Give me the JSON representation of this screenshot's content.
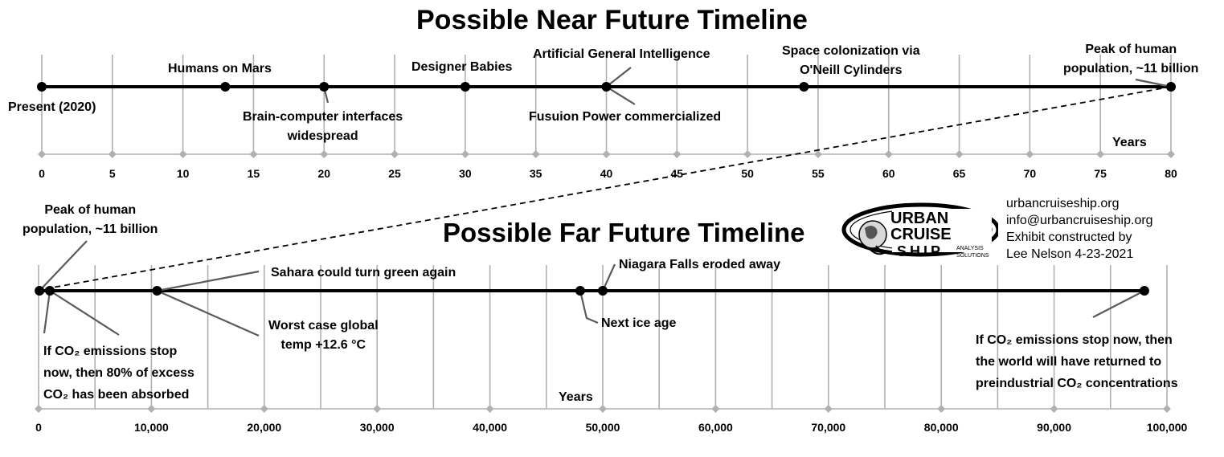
{
  "near": {
    "title": "Possible Near Future Timeline",
    "unit_label": "Years",
    "axis": {
      "min": 0,
      "max": 80,
      "ticks": [
        0,
        5,
        10,
        15,
        20,
        25,
        30,
        35,
        40,
        45,
        50,
        55,
        60,
        65,
        70,
        75,
        80
      ]
    },
    "events": [
      {
        "year": 0,
        "lines": [
          "Present (2020)"
        ]
      },
      {
        "year": 13,
        "lines": [
          "Humans on Mars"
        ]
      },
      {
        "year": 20,
        "lines": [
          "Brain-computer interfaces",
          "widespread"
        ]
      },
      {
        "year": 30,
        "lines": [
          "Designer Babies"
        ]
      },
      {
        "year": 40,
        "lines": [
          "Artificial General Intelligence"
        ]
      },
      {
        "year": 40,
        "lines": [
          "Fusuion Power commercialized"
        ]
      },
      {
        "year": 54,
        "lines": [
          "Space colonization via",
          "O'Neill Cylinders"
        ]
      },
      {
        "year": 80,
        "lines": [
          "Peak of human",
          "population, ~11 billion"
        ]
      }
    ]
  },
  "far": {
    "title": "Possible Far Future Timeline",
    "unit_label": "Years",
    "axis": {
      "min": 0,
      "max": 100000,
      "ticks": [
        "0",
        "10,000",
        "20,000",
        "30,000",
        "40,000",
        "50,000",
        "60,000",
        "70,000",
        "80,000",
        "90,000",
        "100,000"
      ]
    },
    "events": [
      {
        "year": 80,
        "lines": [
          "Peak of human",
          "population, ~11 billion"
        ]
      },
      {
        "year": 1000,
        "lines": [
          "If CO₂ emissions stop",
          "now, then 80% of excess",
          "CO₂ has been absorbed"
        ]
      },
      {
        "year": 10500,
        "lines": [
          "Sahara could turn green again"
        ]
      },
      {
        "year": 10500,
        "lines": [
          "Worst case global",
          "temp +12.6 °C"
        ]
      },
      {
        "year": 48000,
        "lines": [
          "Next ice age"
        ]
      },
      {
        "year": 50000,
        "lines": [
          "Niagara Falls eroded away"
        ]
      },
      {
        "year": 98000,
        "lines": [
          "If CO₂ emissions stop now, then",
          "the world will have returned to",
          "preindustrial CO₂ concentrations"
        ]
      }
    ]
  },
  "credits": {
    "website": "urbancruiseship.org",
    "email": "info@urbancruiseship.org",
    "line3": "Exhibit constructed by",
    "line4": "Lee Nelson 4-23-2021"
  },
  "logo": {
    "name": "urban-cruise-ship-logo",
    "words": [
      "URBAN",
      "CRUISE",
      "SHIP",
      "ANALYSIS",
      "SOLUTIONS"
    ]
  },
  "colors": {
    "ink": "#000000",
    "grid": "#b0b0b0",
    "leader": "#5a5a5a"
  }
}
